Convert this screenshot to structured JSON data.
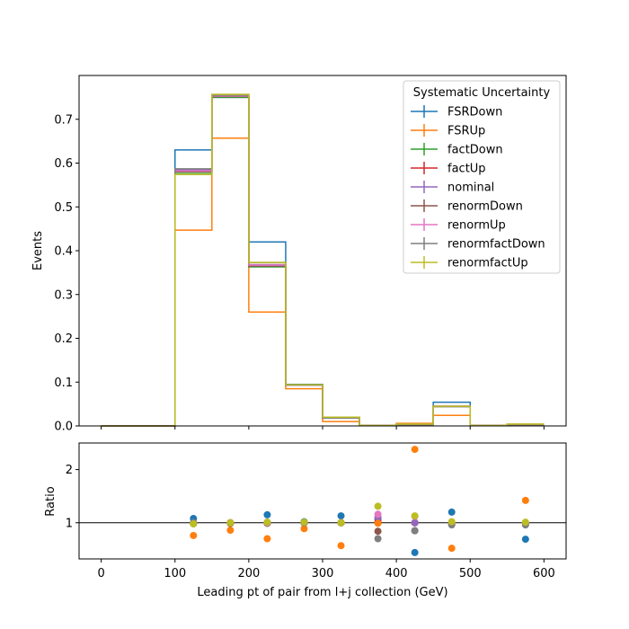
{
  "chart_data": {
    "type": "step-histogram-with-ratio",
    "xlabel": "Leading pt of pair from l+j collection (GeV)",
    "xlim": [
      -30,
      630
    ],
    "x_ticks": [
      0,
      100,
      200,
      300,
      400,
      500,
      600
    ],
    "bin_edges": [
      0,
      100,
      150,
      200,
      250,
      300,
      350,
      400,
      450,
      500,
      550,
      600
    ],
    "bin_centers": [
      50,
      125,
      175,
      225,
      275,
      325,
      375,
      425,
      475,
      525,
      575
    ],
    "top_panel": {
      "ylabel": "Events",
      "ylim": [
        0,
        0.8
      ],
      "y_ticks": [
        0.0,
        0.1,
        0.2,
        0.3,
        0.4,
        0.5,
        0.6,
        0.7
      ],
      "y_tick_labels": [
        "0.0",
        "0.1",
        "0.2",
        "0.3",
        "0.4",
        "0.5",
        "0.6",
        "0.7"
      ]
    },
    "bottom_panel": {
      "ylabel": "Ratio",
      "ylim": [
        0.32,
        2.5
      ],
      "y_ticks": [
        1,
        2
      ],
      "y_tick_labels": [
        "1",
        "2"
      ],
      "reference_line": 1
    },
    "legend": {
      "title": "Systematic Uncertainty",
      "placement": "upper-right"
    },
    "series": [
      {
        "name": "FSRDown",
        "color": "#1f77b4",
        "values": [
          0,
          0.63,
          0.75,
          0.42,
          0.095,
          0.02,
          0.001,
          0.003,
          0.054,
          0.001,
          0.003
        ],
        "ratio": [
          null,
          1.08,
          0.99,
          1.15,
          1.02,
          1.13,
          null,
          0.44,
          1.2,
          null,
          0.69
        ]
      },
      {
        "name": "FSRUp",
        "color": "#ff7f0e",
        "values": [
          0,
          0.447,
          0.657,
          0.26,
          0.085,
          0.01,
          0.001,
          0.006,
          0.024,
          0.001,
          0.004
        ],
        "ratio": [
          null,
          0.76,
          0.86,
          0.7,
          0.89,
          0.57,
          null,
          2.38,
          0.52,
          null,
          1.42
        ]
      },
      {
        "name": "factDown",
        "color": "#2ca02c",
        "values": [
          0,
          0.576,
          0.75,
          0.363,
          0.093,
          0.018,
          0.001,
          0.003,
          0.045,
          0.001,
          0.003
        ],
        "ratio": [
          null,
          0.98,
          0.99,
          0.99,
          1.0,
          1.0,
          null,
          1.0,
          1.0,
          null,
          1.0
        ]
      },
      {
        "name": "factUp",
        "color": "#d62728",
        "values": [
          0,
          0.583,
          0.755,
          0.368,
          0.093,
          0.018,
          0.001,
          0.003,
          0.045,
          0.001,
          0.003
        ],
        "ratio": [
          null,
          0.99,
          1.0,
          1.0,
          1.0,
          1.0,
          null,
          1.0,
          1.0,
          null,
          1.0
        ]
      },
      {
        "name": "nominal",
        "color": "#9467bd",
        "values": [
          0,
          0.585,
          0.756,
          0.368,
          0.093,
          0.018,
          0.001,
          0.003,
          0.045,
          0.001,
          0.003
        ],
        "ratio": [
          null,
          1.0,
          1.0,
          1.0,
          1.0,
          1.0,
          null,
          1.0,
          1.0,
          null,
          1.0
        ]
      },
      {
        "name": "renormDown",
        "color": "#8c564b",
        "values": [
          0,
          0.58,
          0.752,
          0.365,
          0.093,
          0.018,
          0.001,
          0.003,
          0.044,
          0.001,
          0.003
        ],
        "ratio": [
          null,
          0.99,
          0.99,
          0.99,
          1.0,
          1.0,
          null,
          0.85,
          0.97,
          null,
          0.97
        ]
      },
      {
        "name": "renormUp",
        "color": "#e377c2",
        "values": [
          0,
          0.582,
          0.753,
          0.367,
          0.093,
          0.018,
          0.001,
          0.003,
          0.045,
          0.001,
          0.003
        ],
        "ratio": [
          null,
          0.99,
          1.0,
          1.0,
          1.0,
          1.0,
          null,
          1.12,
          1.0,
          null,
          1.0
        ]
      },
      {
        "name": "renormfactDown",
        "color": "#7f7f7f",
        "values": [
          0,
          0.587,
          0.755,
          0.373,
          0.093,
          0.018,
          0.001,
          0.003,
          0.044,
          0.001,
          0.003
        ],
        "ratio": [
          null,
          1.0,
          1.0,
          1.01,
          1.0,
          1.0,
          null,
          0.85,
          0.96,
          null,
          0.96
        ]
      },
      {
        "name": "renormfactUp",
        "color": "#bcbd22",
        "values": [
          0,
          0.574,
          0.757,
          0.373,
          0.094,
          0.02,
          0.001,
          0.004,
          0.045,
          0.001,
          0.004
        ],
        "ratio": [
          null,
          0.98,
          1.0,
          1.01,
          1.01,
          1.0,
          null,
          1.13,
          1.02,
          null,
          1.01
        ]
      }
    ],
    "extra_ratio_points": [
      {
        "series": "FSRDown",
        "x": 375,
        "y": 1.07
      },
      {
        "series": "factUp",
        "x": 375,
        "y": 1.02
      },
      {
        "series": "nominal",
        "x": 375,
        "y": 1.1
      },
      {
        "series": "renormDown",
        "x": 375,
        "y": 0.84
      },
      {
        "series": "renormUp",
        "x": 375,
        "y": 1.16
      },
      {
        "series": "renormfactDown",
        "x": 375,
        "y": 0.7
      },
      {
        "series": "renormfactUp",
        "x": 375,
        "y": 1.31
      },
      {
        "series": "FSRUp",
        "x": 375,
        "y": 0.99
      }
    ]
  }
}
